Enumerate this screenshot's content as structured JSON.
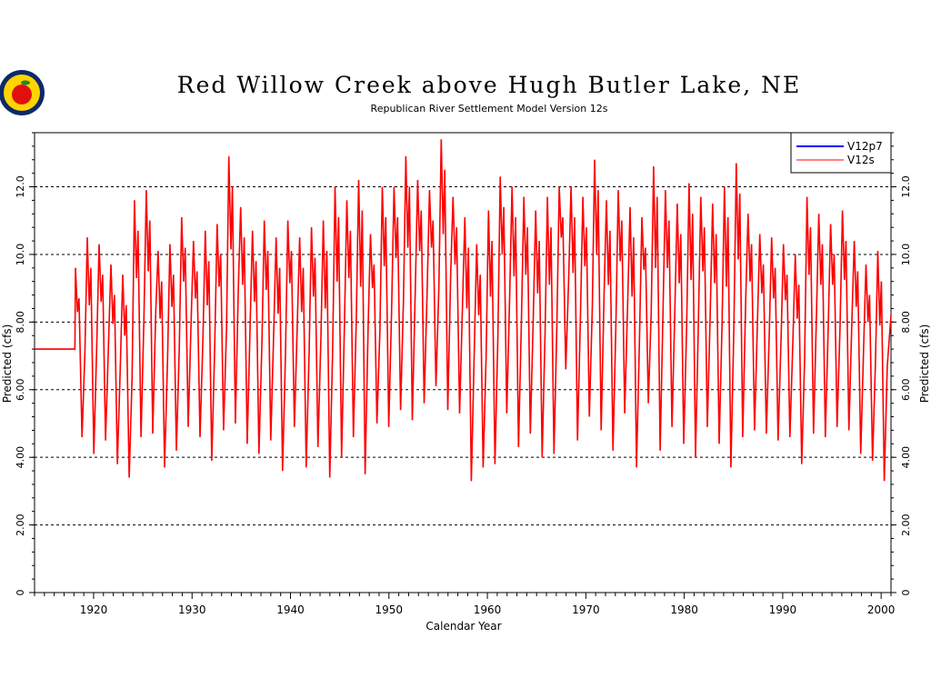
{
  "colors": {
    "background": "#ffffff",
    "axis": "#000000",
    "grid": "#000000",
    "series_v12p7": "#0000ff",
    "series_v12s": "#ff0000",
    "logo_ring": "#0b2a6b",
    "logo_apple": "#e01010",
    "logo_leaf": "#1c8a2a",
    "logo_sun": "#ffd400"
  },
  "icons": {
    "logo": "apple-seal-icon"
  },
  "chart_data": {
    "type": "line",
    "title": "Red Willow Creek above Hugh Butler Lake, NE",
    "subtitle": "Republican River Settlement Model Version 12s",
    "xlabel": "Calendar Year",
    "ylabel": "Predicted (cfs)",
    "ylabel_right": "Predicted (cfs)",
    "xlim": [
      1914,
      2001
    ],
    "ylim": [
      0,
      13.6
    ],
    "x_ticks": [
      1920,
      1930,
      1940,
      1950,
      1960,
      1970,
      1980,
      1990,
      2000
    ],
    "x_tick_labels": [
      "1920",
      "1930",
      "1940",
      "1950",
      "1960",
      "1970",
      "1980",
      "1990",
      "2000"
    ],
    "y_ticks": [
      0,
      2,
      4,
      6,
      8,
      10,
      12
    ],
    "y_tick_labels": [
      "0",
      "2.00",
      "4.00",
      "6.00",
      "8.00",
      "10.0",
      "12.0"
    ],
    "grid": "horizontal dashed",
    "legend_position": "top-right",
    "legend": [
      {
        "name": "V12p7",
        "color": "#0000ff"
      },
      {
        "name": "V12s",
        "color": "#ff0000"
      }
    ],
    "series": [
      {
        "name": "V12s",
        "color": "#ff0000",
        "start_year": 1914.0,
        "flat_until": 1918.1,
        "flat_value": 7.2,
        "annual_peaks": [
          9.6,
          10.5,
          10.3,
          9.7,
          9.4,
          11.6,
          11.9,
          10.1,
          10.3,
          11.1,
          10.4,
          10.7,
          10.9,
          12.9,
          11.4,
          10.7,
          11.0,
          10.5,
          11.0,
          10.5,
          10.8,
          11.0,
          12.0,
          11.6,
          12.2,
          10.6,
          12.0,
          12.0,
          12.9,
          12.2,
          11.9,
          13.4,
          11.7,
          11.1,
          10.3,
          11.3,
          12.3,
          12.0,
          11.7,
          11.3,
          11.7,
          12.0,
          12.0,
          11.7,
          12.8,
          11.6,
          11.9,
          11.4,
          11.1,
          12.6,
          11.9,
          11.5,
          12.1,
          11.7,
          11.5,
          12.0,
          12.7,
          11.2,
          10.6,
          10.5,
          10.3,
          10.0,
          11.7,
          11.2,
          10.9,
          11.3,
          10.4,
          9.7,
          10.1
        ],
        "annual_troughs": [
          4.6,
          4.1,
          4.5,
          3.8,
          3.4,
          4.6,
          4.7,
          3.7,
          4.2,
          4.9,
          4.6,
          3.9,
          4.8,
          5.0,
          4.4,
          4.1,
          4.5,
          3.6,
          4.9,
          3.7,
          4.3,
          3.4,
          4.0,
          4.6,
          3.5,
          5.0,
          4.9,
          5.4,
          5.1,
          5.6,
          6.1,
          5.4,
          5.3,
          3.3,
          3.7,
          3.8,
          5.3,
          4.3,
          4.7,
          4.0,
          4.1,
          6.6,
          4.5,
          5.2,
          4.8,
          4.2,
          5.3,
          3.7,
          5.6,
          4.2,
          4.9,
          4.4,
          4.0,
          4.9,
          4.4,
          3.7,
          4.6,
          4.8,
          4.7,
          4.5,
          4.6,
          3.8,
          4.7,
          4.6,
          4.9,
          4.8,
          4.1,
          3.9,
          3.3
        ],
        "end_value": 8.2
      },
      {
        "name": "V12p7",
        "color": "#0000ff",
        "note": "coincident with V12s (hidden beneath red line)"
      }
    ]
  }
}
